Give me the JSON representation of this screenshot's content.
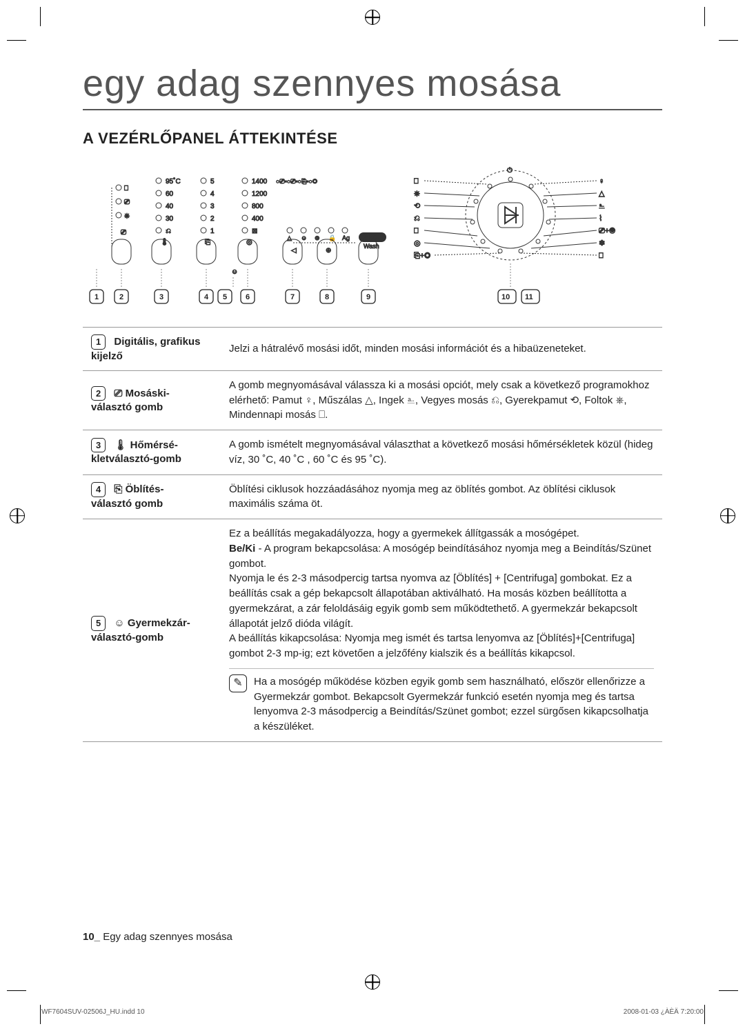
{
  "title": "egy adag szennyes mosása",
  "section_head": "A VEZÉRLŐPANEL ÁTTEKINTÉSE",
  "diagram": {
    "temps": [
      "95˚C",
      "60",
      "40",
      "30"
    ],
    "rinses": [
      "5",
      "4",
      "3",
      "2",
      "1"
    ],
    "spins": [
      "1400",
      "1200",
      "800",
      "400"
    ],
    "silver_label": "Silver",
    "wash_label": "Wash",
    "callouts": [
      "1",
      "2",
      "3",
      "4",
      "5",
      "6",
      "7",
      "8",
      "9",
      "10",
      "11"
    ]
  },
  "rows": [
    {
      "num": "1",
      "label_line1": "Digitális, grafikus",
      "label_line2": "kijelző",
      "icon": "",
      "desc": "Jelzi a hátralévő mosási időt, minden mosási információt és a hibaüzeneteket."
    },
    {
      "num": "2",
      "label_line1": "Mosáski-",
      "label_line2": "választó gomb",
      "icon": "⎚",
      "desc": "A gomb megnyomásával válassza ki a mosási opciót, mely csak a következő programokhoz elérhető: Pamut ♀, Műszálas △, Ingek ⎁, Vegyes mosás ⎌, Gyerekpamut ⟲, Foltok ⎈, Mindennapi mosás ⎕."
    },
    {
      "num": "3",
      "label_line1": "Hőmérsé-",
      "label_line2": "kletválasztó-gomb",
      "icon": "🌡",
      "desc": "A gomb ismételt megnyomásával választhat a következő mosási hőmérsékletek közül (hideg víz, 30 ˚C, 40 ˚C , 60 ˚C és 95 ˚C)."
    },
    {
      "num": "4",
      "label_line1": "Öblítés-",
      "label_line2": "választó gomb",
      "icon": "⎘",
      "desc": "Öblítési ciklusok hozzáadásához nyomja meg az öblítés gombot. Az öblítési ciklusok maximális száma öt."
    },
    {
      "num": "5",
      "label_line1": "Gyermekzár-",
      "label_line2": "választó-gomb",
      "icon": "☺",
      "desc_html": true,
      "desc": "Ez a beállítás megakadályozza, hogy a gyermekek állítgassák a mosógépet.\n<b>Be/Ki</b> - A program bekapcsolása: A mosógép beindításához nyomja meg a Beindítás/Szünet gombot.\nNyomja le és 2-3 másodpercig tartsa nyomva az [Öblítés] + [Centrifuga] gombokat. Ez a beállítás csak a gép bekapcsolt állapotában aktiválható. Ha mosás közben beállította a gyermekzárat, a zár feloldásáig egyik gomb sem működtethető. A gyermekzár bekapcsolt állapotát jelző dióda világít.\nA beállítás kikapcsolása: Nyomja meg ismét és tartsa lenyomva az [Öblítés]+[Centrifuga] gombot 2-3 mp-ig; ezt követően a jelzőfény kialszik és a beállítás kikapcsol.",
      "info": "Ha a mosógép működése közben egyik gomb sem használható, először ellenőrizze a Gyermekzár gombot. Bekapcsolt Gyermekzár funkció esetén nyomja meg és tartsa lenyomva 2-3 másodpercig a Beindítás/Szünet gombot; ezzel sürgősen kikapcsolhatja a készüléket."
    }
  ],
  "footer_bold": "10_",
  "footer_text": " Egy adag szennyes mosása",
  "print_file": "WF7604SUV-02506J_HU.indd   10",
  "print_date": "2008-01-03   ¿ÀÈÄ 7:20:00"
}
